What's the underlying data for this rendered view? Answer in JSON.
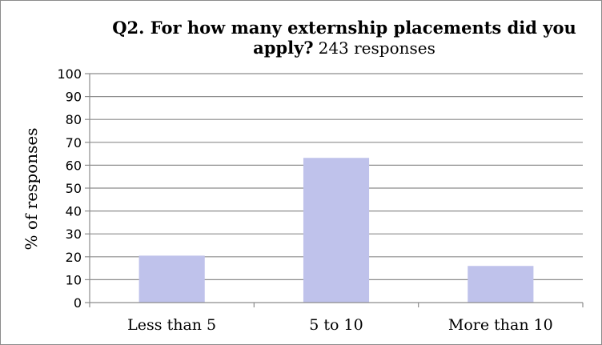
{
  "chart_data": {
    "type": "bar",
    "title": "Q2. For how many externship placements did you apply?",
    "title_line1": "Q2. For how many externship placements did you",
    "title_line2": "apply?",
    "subtitle": "243 responses",
    "categories": [
      "Less than 5",
      "5 to 10",
      "More than 10"
    ],
    "values": [
      20.5,
      63.2,
      16.0
    ],
    "ylabel": "% of responses",
    "xlabel": "",
    "ylim": [
      0,
      100
    ],
    "yticks": [
      0,
      10,
      20,
      30,
      40,
      50,
      60,
      70,
      80,
      90,
      100
    ],
    "grid": true,
    "legend": "none",
    "bar_color": "#bfc2eb",
    "grid_color": "#8c8c8c",
    "axis_color": "#8c8c8c"
  }
}
